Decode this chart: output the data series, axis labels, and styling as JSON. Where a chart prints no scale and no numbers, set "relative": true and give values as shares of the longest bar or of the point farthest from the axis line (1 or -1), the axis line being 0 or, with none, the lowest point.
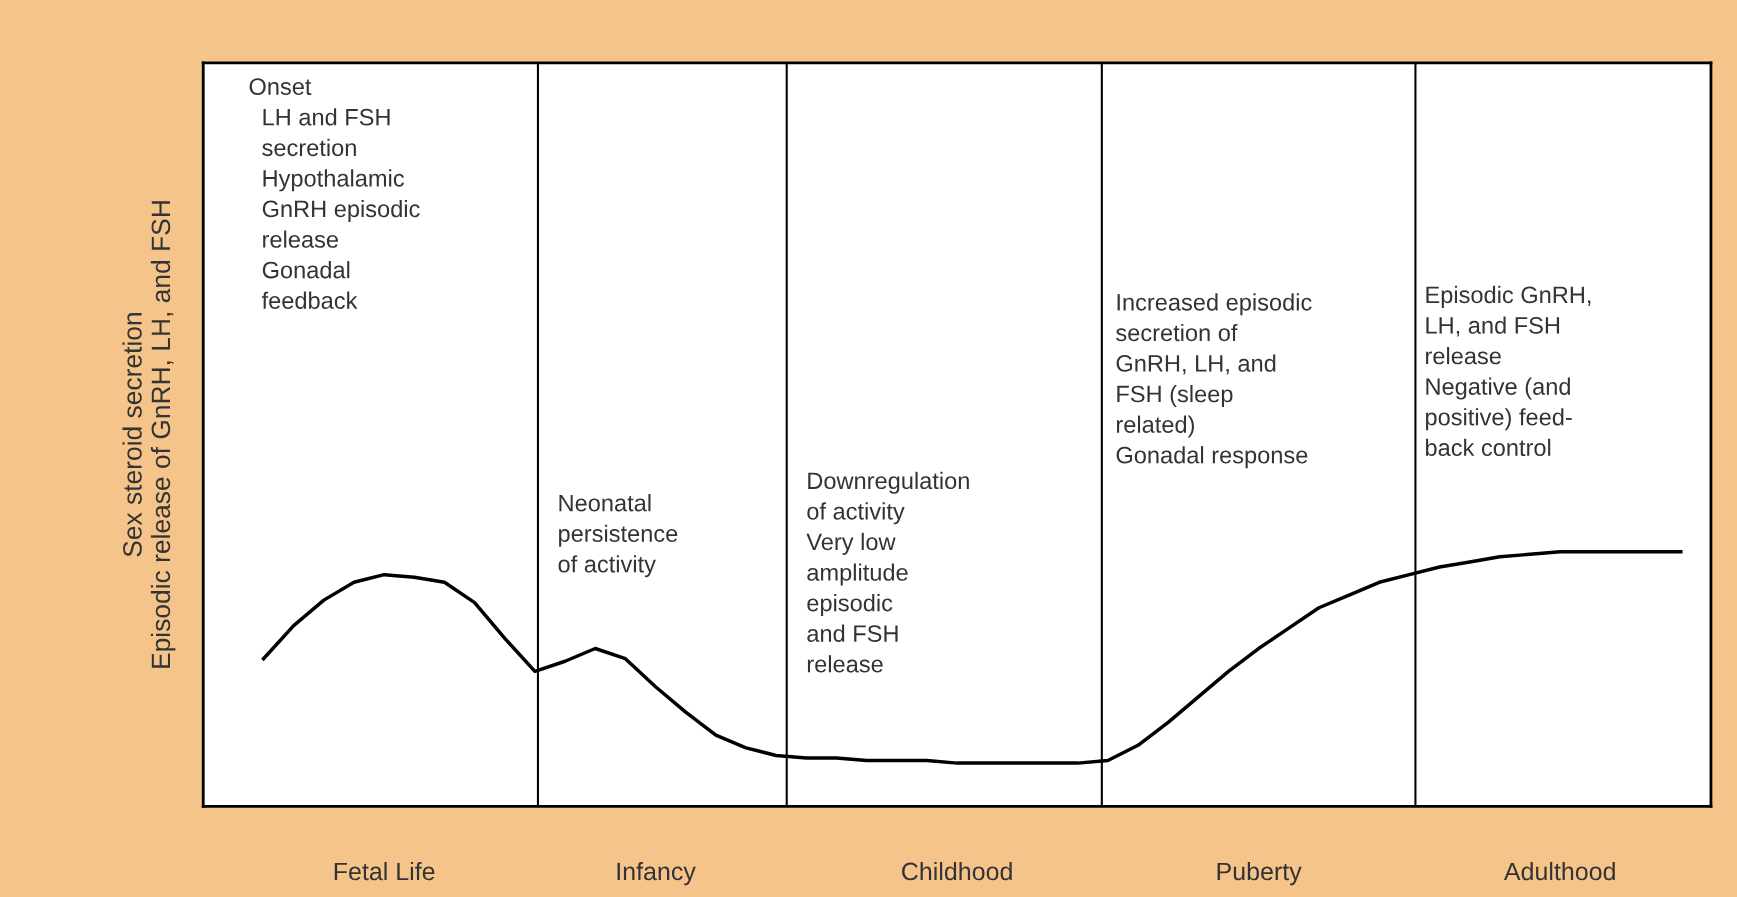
{
  "chart_data": {
    "type": "line",
    "relative": true,
    "ylabel": "Sex steroid secretion\nEpisodic release of GnRH, LH, and FSH",
    "categories": [
      null,
      null,
      null,
      null,
      "Fetal Life",
      null,
      null,
      null,
      null,
      null,
      null,
      null,
      null,
      "Infancy",
      null,
      null,
      null,
      null,
      null,
      null,
      null,
      null,
      null,
      "Childhood",
      null,
      null,
      null,
      null,
      null,
      null,
      null,
      null,
      null,
      "Puberty",
      null,
      null,
      null,
      null,
      null,
      null,
      null,
      null,
      null,
      "Adulthood",
      null,
      null,
      null,
      null
    ],
    "series": [
      {
        "color": "#000000",
        "values": [
          0.58,
          0.71,
          0.81,
          0.88,
          0.91,
          0.9,
          0.88,
          0.8,
          0.66,
          0.53,
          0.57,
          0.62,
          0.58,
          0.47,
          0.37,
          0.28,
          0.23,
          0.2,
          0.19,
          0.19,
          0.18,
          0.18,
          0.18,
          0.17,
          0.17,
          0.17,
          0.17,
          0.17,
          0.18,
          0.24,
          0.33,
          0.43,
          0.53,
          0.62,
          0.7,
          0.78,
          0.83,
          0.88,
          0.91,
          0.94,
          0.96,
          0.98,
          0.99,
          1,
          1,
          1,
          1,
          1
        ]
      }
    ],
    "annotations": [
      "Onset\n  LH and FSH\n  secretion\n  Hypothalamic\n  GnRH episodic\n  release\n  Gonadal\n  feedback",
      "Neonatal\npersistence\nof activity",
      "Downregulation\nof activity\nVery low\namplitude\nepisodic\nand FSH\nrelease",
      "Increased episodic\nsecretion of\nGnRH, LH, and\nFSH (sleep\nrelated)\nGonadal response",
      "Episodic GnRH,\nLH, and FSH\nrelease\nNegative (and\npositive) feed-\nback control"
    ],
    "tick_labels": "x",
    "line_style": "solid"
  }
}
